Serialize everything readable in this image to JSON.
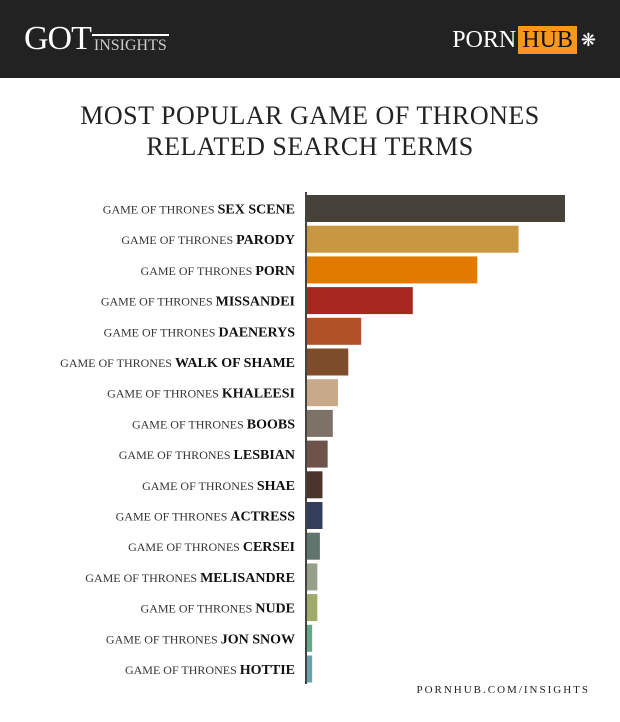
{
  "header": {
    "got_logo": "GOT",
    "got_sub": "INSIGHTS",
    "ph_porn": "PORN",
    "ph_hub": "HUB"
  },
  "title_line1": "MOST POPULAR GAME OF THRONES",
  "title_line2": "RELATED SEARCH TERMS",
  "footer": "PORNHUB.COM/INSIGHTS",
  "chart_data": {
    "type": "bar",
    "orientation": "horizontal",
    "title": "MOST POPULAR GAME OF THRONES RELATED SEARCH TERMS",
    "label_prefix": "GAME OF THRONES",
    "categories": [
      "SEX SCENE",
      "PARODY",
      "PORN",
      "MISSANDEI",
      "DAENERYS",
      "WALK OF SHAME",
      "KHALEESI",
      "BOOBS",
      "LESBIAN",
      "SHAE",
      "ACTRESS",
      "CERSEI",
      "MELISANDRE",
      "NUDE",
      "JON SNOW",
      "HOTTIE"
    ],
    "values": [
      100,
      82,
      66,
      41,
      21,
      16,
      12,
      10,
      8,
      6,
      6,
      5,
      4,
      4,
      2,
      2
    ],
    "value_unit": "relative (% of top term), estimated from bar length",
    "colors": [
      "#46423a",
      "#c99741",
      "#e37a00",
      "#a8271f",
      "#b15128",
      "#7d4c2a",
      "#c8aa8b",
      "#7d7268",
      "#6e534a",
      "#4a342d",
      "#353e5a",
      "#61756f",
      "#96a088",
      "#9eaa6a",
      "#66a88a",
      "#68a3ab"
    ],
    "grid": false,
    "legend": "none"
  }
}
